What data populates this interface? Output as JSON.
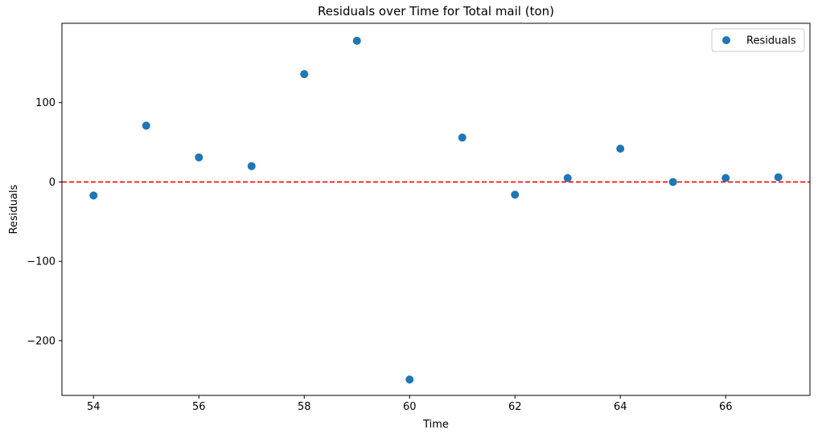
{
  "chart_data": {
    "type": "scatter",
    "title": "Residuals over Time for Total mail (ton)",
    "xlabel": "Time",
    "ylabel": "Residuals",
    "xlim": [
      53.4,
      67.6
    ],
    "ylim": [
      -269,
      200
    ],
    "xticks": [
      54,
      56,
      58,
      60,
      62,
      64,
      66
    ],
    "xtick_labels": [
      "54",
      "56",
      "58",
      "60",
      "62",
      "64",
      "66"
    ],
    "yticks": [
      -200,
      -100,
      0,
      100
    ],
    "ytick_labels": [
      "−200",
      "−100",
      "0",
      "100"
    ],
    "grid": false,
    "legend": {
      "placement": "top-right",
      "entries": [
        "Residuals"
      ]
    },
    "series": [
      {
        "name": "Residuals",
        "color": "#1f77b4",
        "x": [
          54,
          55,
          56,
          57,
          58,
          59,
          60,
          61,
          62,
          63,
          64,
          65,
          66,
          67
        ],
        "y": [
          -17,
          71,
          31,
          20,
          136,
          178,
          -249,
          56,
          -16,
          5,
          42,
          0,
          5,
          6
        ]
      }
    ],
    "reference_line": {
      "y": 0,
      "color": "#ff0000",
      "style": "dashed"
    }
  }
}
